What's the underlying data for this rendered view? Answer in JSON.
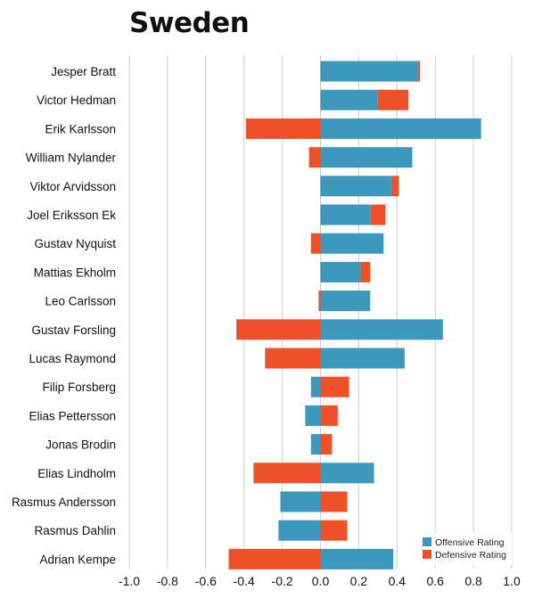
{
  "title": "Sweden",
  "colors": {
    "offensive": "#3d98bd",
    "defensive": "#ee5127",
    "grid": "#cccccc"
  },
  "chart_data": {
    "type": "bar",
    "orientation": "horizontal",
    "title": "Sweden",
    "xlim": [
      -1.0,
      1.0
    ],
    "xticks": [
      -1.0,
      -0.8,
      -0.6,
      -0.4,
      -0.2,
      0.0,
      0.2,
      0.4,
      0.6,
      0.8,
      1.0
    ],
    "xtick_labels": [
      "-1.0",
      "-0.8",
      "-0.6",
      "-0.4",
      "-0.2",
      "0.0",
      "0.2",
      "0.4",
      "0.6",
      "0.8",
      "1.0"
    ],
    "grid": true,
    "legend_position": "bottom-right",
    "categories": [
      "Jesper Bratt",
      "Victor Hedman",
      "Erik Karlsson",
      "William Nylander",
      "Viktor Arvidsson",
      "Joel Eriksson Ek",
      "Gustav Nyquist",
      "Mattias Ekholm",
      "Leo Carlsson",
      "Gustav Forsling",
      "Lucas Raymond",
      "Filip Forsberg",
      "Elias Pettersson",
      "Jonas Brodin",
      "Elias Lindholm",
      "Rasmus Andersson",
      "Rasmus Dahlin",
      "Adrian Kempe"
    ],
    "series": [
      {
        "name": "Offensive Rating",
        "values": [
          0.51,
          0.3,
          0.84,
          0.48,
          0.37,
          0.26,
          0.33,
          0.21,
          0.26,
          0.64,
          0.44,
          -0.05,
          -0.08,
          -0.05,
          0.28,
          -0.21,
          -0.22,
          0.38
        ]
      },
      {
        "name": "Defensive Rating",
        "values": [
          0.01,
          0.16,
          -0.39,
          -0.06,
          0.04,
          0.08,
          -0.05,
          0.05,
          -0.01,
          -0.44,
          -0.29,
          0.15,
          0.09,
          0.06,
          -0.35,
          0.14,
          0.14,
          -0.48
        ]
      }
    ]
  }
}
